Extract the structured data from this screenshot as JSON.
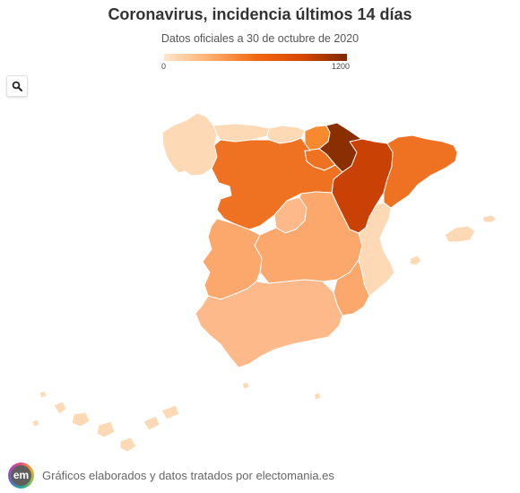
{
  "header": {
    "title": "Coronavirus, incidencia últimos 14 días",
    "subtitle": "Datos oficiales a 30 de octubre de 2020"
  },
  "legend": {
    "min_label": "0",
    "max_label": "1200",
    "colors": [
      "#fee6ce",
      "#fdae6b",
      "#f16913",
      "#d94801",
      "#7f2704"
    ]
  },
  "search_button": {
    "icon": "search-icon"
  },
  "map": {
    "color_scale": {
      "min": 0,
      "max": 1200
    },
    "regions": [
      {
        "id": "galicia",
        "level": "low"
      },
      {
        "id": "asturias",
        "level": "low"
      },
      {
        "id": "cantabria",
        "level": "low"
      },
      {
        "id": "pais-vasco",
        "level": "medium-high"
      },
      {
        "id": "navarra",
        "level": "very-high"
      },
      {
        "id": "la-rioja",
        "level": "high"
      },
      {
        "id": "aragon",
        "level": "very-high"
      },
      {
        "id": "cataluna",
        "level": "high"
      },
      {
        "id": "castilla-y-leon",
        "level": "high"
      },
      {
        "id": "madrid",
        "level": "low-medium"
      },
      {
        "id": "castilla-la-mancha",
        "level": "medium"
      },
      {
        "id": "extremadura",
        "level": "medium"
      },
      {
        "id": "comunitat-valenciana",
        "level": "low"
      },
      {
        "id": "murcia",
        "level": "medium"
      },
      {
        "id": "andalucia",
        "level": "low-medium"
      },
      {
        "id": "baleares",
        "level": "low"
      },
      {
        "id": "canarias",
        "level": "low"
      },
      {
        "id": "ceuta",
        "level": "low"
      },
      {
        "id": "melilla",
        "level": "low"
      }
    ]
  },
  "footer": {
    "logo_text": "em",
    "text": "Gráficos elaborados y datos tratados por electomania.es"
  }
}
